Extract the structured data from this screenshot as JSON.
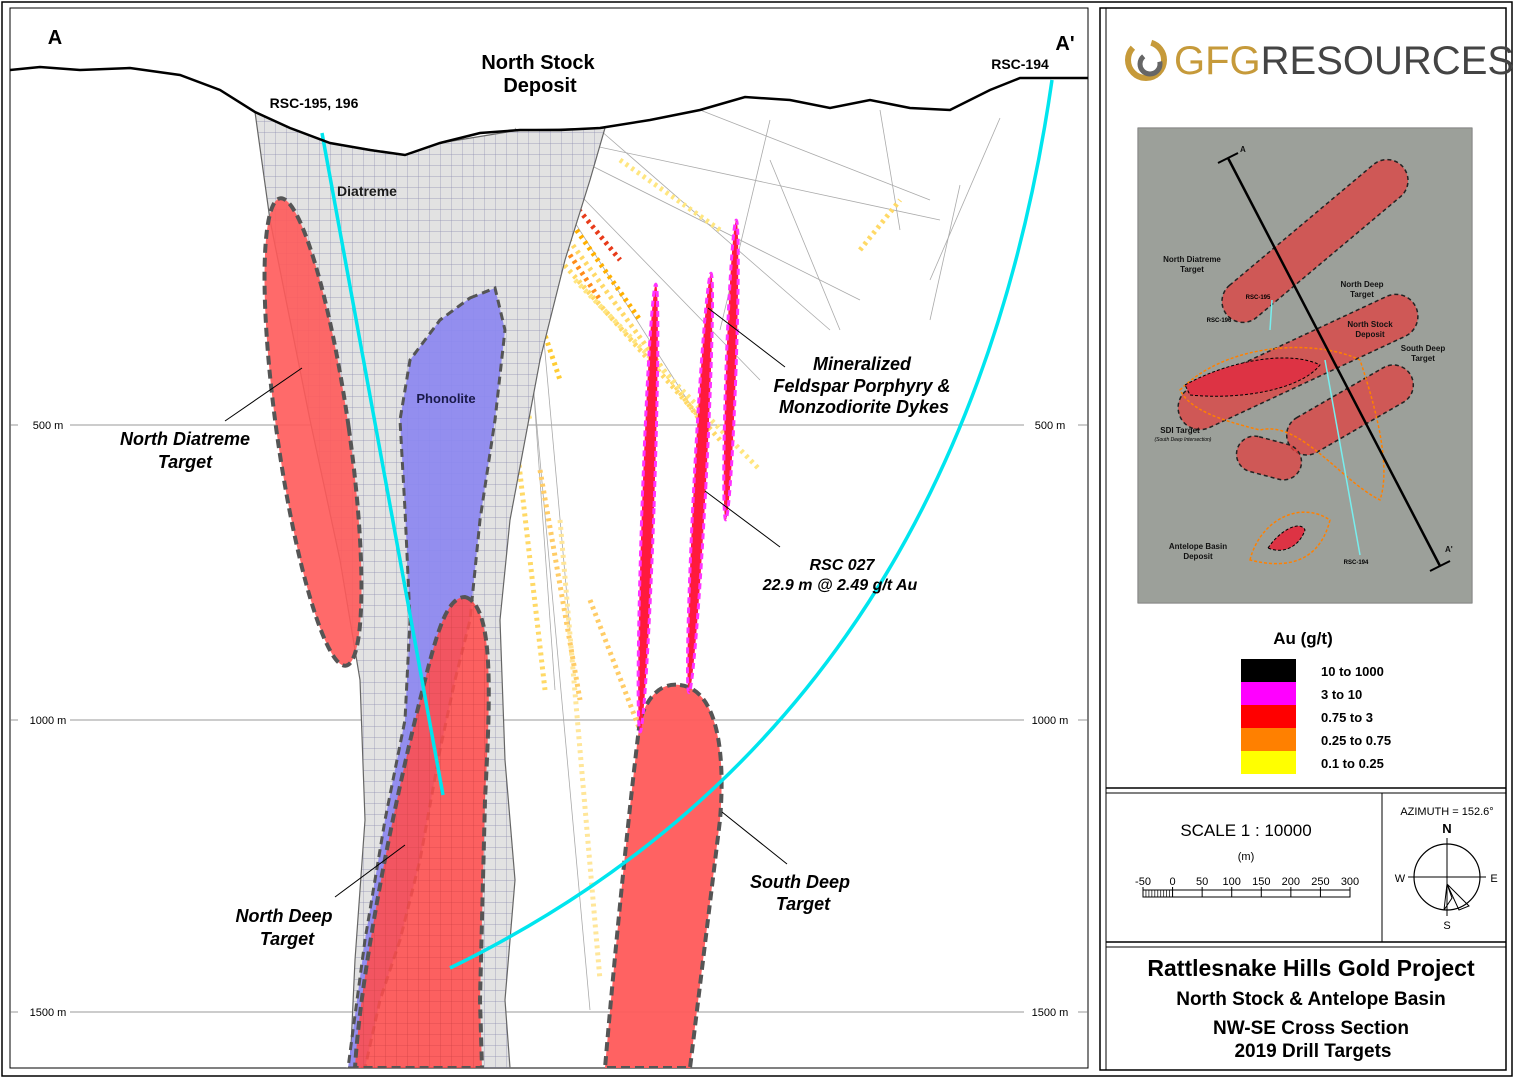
{
  "section": {
    "start": "A",
    "end": "A'",
    "deposit": [
      "North Stock",
      "Deposit"
    ],
    "holes": {
      "rsc_195_196": "RSC-195, 196",
      "rsc_194": "RSC-194"
    },
    "units": {
      "diatreme": "Diatreme",
      "phonolite": "Phonolite"
    },
    "targets": {
      "north_diatreme": [
        "North Diatreme",
        "Target"
      ],
      "north_deep": [
        "North Deep",
        "Target"
      ],
      "south_deep": [
        "South Deep",
        "Target"
      ]
    },
    "dykes": [
      "Mineralized",
      "Feldspar Porphyry &",
      "Monzodiorite Dykes"
    ],
    "intercept": [
      "RSC 027",
      "22.9 m @ 2.49 g/t Au"
    ],
    "elevations": [
      "500 m",
      "1000 m",
      "1500 m"
    ]
  },
  "logo": {
    "gfg": "GFG",
    "resources": "RESOURCES"
  },
  "inset": {
    "north_diatreme": [
      "North Diatreme",
      "Target"
    ],
    "north_deep": [
      "North Deep",
      "Target"
    ],
    "north_stock": [
      "North Stock",
      "Deposit"
    ],
    "south_deep": [
      "South Deep",
      "Target"
    ],
    "sdi": [
      "SDI Target",
      "(South Deep Intersection)"
    ],
    "antelope": [
      "Antelope Basin",
      "Deposit"
    ],
    "rsc_195": "RSC-195",
    "rsc_196": "RSC-196",
    "rsc_194": "RSC-194",
    "start": "A",
    "end": "A'"
  },
  "legend": {
    "title": "Au (g/t)",
    "items": [
      {
        "label": "10 to 1000",
        "color": "#000000"
      },
      {
        "label": "3 to 10",
        "color": "#ff00ff"
      },
      {
        "label": "0.75 to 3",
        "color": "#ff0000"
      },
      {
        "label": "0.25 to 0.75",
        "color": "#ff8000"
      },
      {
        "label": "0.1 to 0.25",
        "color": "#ffff00"
      }
    ]
  },
  "scale": {
    "label": "SCALE   1 : 10000",
    "unit": "(m)",
    "ticks": [
      -50,
      0,
      50,
      100,
      150,
      200,
      250,
      300
    ]
  },
  "compass": {
    "azimuth": "AZIMUTH = 152.6°",
    "n": "N",
    "e": "E",
    "s": "S",
    "w": "W"
  },
  "title_block": {
    "title": "Rattlesnake Hills Gold Project",
    "subtitle": "North Stock & Antelope Basin",
    "section": "NW-SE Cross Section",
    "year": "2019 Drill Targets"
  }
}
